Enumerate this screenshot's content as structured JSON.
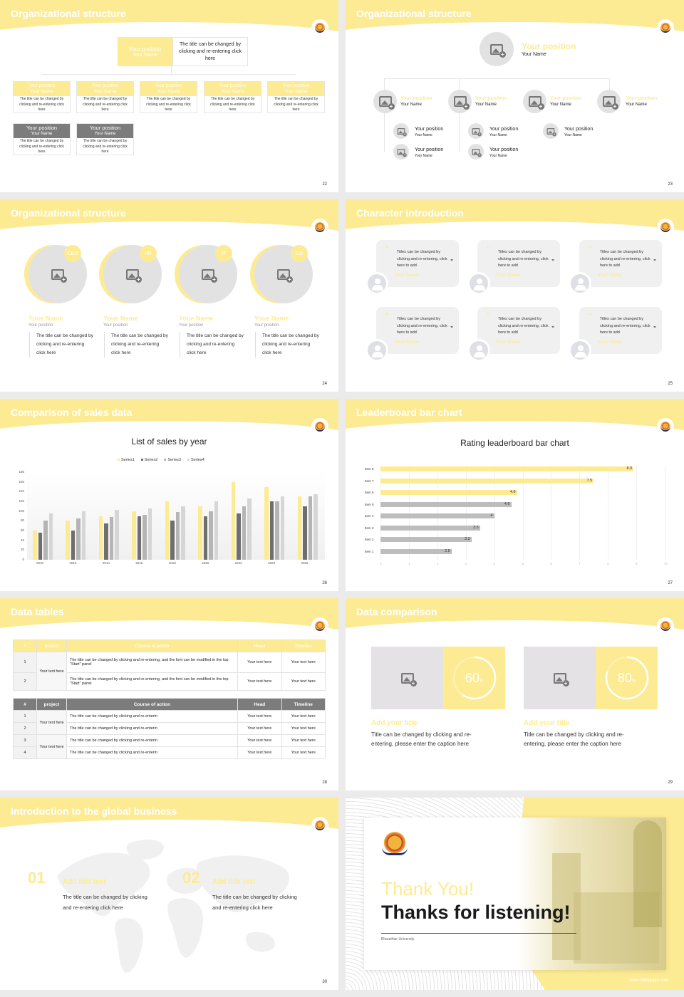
{
  "theme": {
    "accent": "#fdeb93",
    "gray": "#7c7c7c",
    "light_gray": "#e3e2e3",
    "background": "#ebebeb"
  },
  "slides": {
    "s22": {
      "title": "Organizational structure",
      "page": "22",
      "top": {
        "position": "Your position",
        "name": "Your Name",
        "desc": "The title can be changed by clicking and re-entering click here"
      },
      "cards": [
        {
          "position": "Your position",
          "name": "Your Name",
          "desc": "The title can be changed by clicking and re-entering click here"
        },
        {
          "position": "Your position",
          "name": "Your Name",
          "desc": "The title can be changed by clicking and re-entering click here"
        },
        {
          "position": "Your position",
          "name": "Your Name",
          "desc": "The title can be changed by clicking and re-entering click here"
        },
        {
          "position": "Your position",
          "name": "Your Name",
          "desc": "The title can be changed by clicking and re-entering click here"
        },
        {
          "position": "Your position",
          "name": "Your Name",
          "desc": "The title can be changed by clicking and re-entering click here"
        }
      ],
      "sub_cards": [
        {
          "position": "Your position",
          "name": "Your Name",
          "desc": "The title can be changed by clicking and re-entering click here"
        },
        {
          "position": "Your position",
          "name": "Your Name",
          "desc": "The title can be changed by clicking and re-entering click here"
        }
      ]
    },
    "s23": {
      "title": "Organizational structure",
      "page": "23",
      "top": {
        "position": "Your position",
        "name": "Your Name"
      },
      "level2": [
        {
          "position": "Your position",
          "name": "Your Name"
        },
        {
          "position": "Your position",
          "name": "Your Name"
        },
        {
          "position": "Your position",
          "name": "Your Name"
        },
        {
          "position": "Your position",
          "name": "Your Name"
        }
      ],
      "level3": [
        {
          "position": "Your position",
          "name": "Your Name"
        },
        {
          "position": "Your position",
          "name": "Your Name"
        },
        {
          "position": "Your position",
          "name": "Your Name"
        },
        {
          "position": "Your position",
          "name": "Your Name"
        },
        {
          "position": "Your position",
          "name": "Your Name"
        }
      ]
    },
    "s24": {
      "title": "Organizational structure",
      "page": "24",
      "people": [
        {
          "badge": "CEO",
          "name": "Youe Name",
          "position": "Your position",
          "desc": "The title can be changed by clicking and re-entering click here"
        },
        {
          "badge": "PR",
          "name": "Youe Name",
          "position": "Your position",
          "desc": "The title can be changed by clicking and re-entering click here"
        },
        {
          "badge": "IT",
          "name": "Youe Name",
          "position": "Your position",
          "desc": "The title can be changed by clicking and re-entering click here"
        },
        {
          "badge": "GD",
          "name": "Youe Name",
          "position": "Your position",
          "desc": "The title can be changed by clicking and re-entering click here"
        }
      ]
    },
    "s25": {
      "title": "Character introduction",
      "page": "25",
      "cards": [
        {
          "quote": "Titles can be changed by clicking and re-entering, click here to add",
          "name": "Your Name"
        },
        {
          "quote": "Titles can be changed by clicking and re-entering, click here to add",
          "name": "Your Name"
        },
        {
          "quote": "Titles can be changed by clicking and re-entering, click here to add",
          "name": "Your Name"
        },
        {
          "quote": "Titles can be changed by clicking and re-entering, click here to add",
          "name": "Your Name"
        },
        {
          "quote": "Titles can be changed by clicking and re-entering, click here to add",
          "name": "Your Name"
        },
        {
          "quote": "Titles can be changed by clicking and re-entering, click here to add",
          "name": "Your Name"
        }
      ],
      "open_quote": "“",
      "close_quote": "”"
    },
    "s26": {
      "title": "Comparison of sales data",
      "page": "26"
    },
    "s27": {
      "title": "Leaderboard bar chart",
      "page": "27"
    },
    "s28": {
      "title": "Data tables",
      "page": "28",
      "headers": [
        "#",
        "project",
        "Course of action",
        "Head",
        "Timeline"
      ],
      "table1": [
        {
          "num": "1",
          "project": "Your text here",
          "course": "The title can be changed by clicking and re-entering, and the font can be modified in the top \"Start\" panel",
          "head": "Your text here",
          "timeline": "Your text here"
        },
        {
          "num": "2",
          "project": "",
          "course": "The title can be changed by clicking and re-entering, and the font can be modified in the top \"Start\" panel",
          "head": "Your text here",
          "timeline": "Your text here"
        }
      ],
      "table2": [
        {
          "num": "1",
          "project": "Your text here",
          "course": "The title can be changed by clicking and re-enterin",
          "head": "Your text here",
          "timeline": "Your text here"
        },
        {
          "num": "2",
          "project": "",
          "course": "The title can be changed by clicking and re-enterin",
          "head": "Your text here",
          "timeline": "Your text here"
        },
        {
          "num": "3",
          "project": "Your text here",
          "course": "The title can be changed by clicking and re-enterin",
          "head": "Your text here",
          "timeline": "Your text here"
        },
        {
          "num": "4",
          "project": "",
          "course": "The title can be changed by clicking and re-enterin",
          "head": "Your text here",
          "timeline": "Your text here"
        }
      ]
    },
    "s29": {
      "title": "Data comparison",
      "page": "29",
      "items": [
        {
          "percent": "60",
          "unit": "%",
          "title": "Add your title",
          "text": "Title can be changed by clicking and re-entering, please enter the caption here"
        },
        {
          "percent": "80",
          "unit": "%",
          "title": "Add your title",
          "text": "Title can be changed by clicking and re-entering, please enter the caption here"
        }
      ]
    },
    "s30": {
      "title": "Introduction to the global business",
      "page": "30",
      "items": [
        {
          "num": "01",
          "title": "Add title text",
          "text": "The title can be changed by clicking and re-entering click here"
        },
        {
          "num": "02",
          "title": "Add title text",
          "text": "The title can be changed by clicking and re-entering click here"
        }
      ]
    },
    "s31": {
      "line1": "Thank You!",
      "line2": "Thanks for listening!",
      "university": "Bharathiar University",
      "website": "www.collegeppt.com"
    }
  },
  "chart_data": [
    {
      "type": "bar",
      "title": "List of sales by year",
      "categories": [
        "2010",
        "2012",
        "2014",
        "2016",
        "2018",
        "2020",
        "2022",
        "2024",
        "2026"
      ],
      "series": [
        {
          "name": "Series1",
          "color": "#fdeb93",
          "values": [
            60,
            80,
            90,
            100,
            120,
            110,
            160,
            150,
            130
          ]
        },
        {
          "name": "Series2",
          "color": "#6f6f6f",
          "values": [
            55,
            60,
            75,
            90,
            80,
            90,
            95,
            120,
            110
          ]
        },
        {
          "name": "Series3",
          "color": "#b5b5b5",
          "values": [
            80,
            85,
            88,
            92,
            98,
            100,
            110,
            120,
            130
          ]
        },
        {
          "name": "Series4",
          "color": "#d6d6d6",
          "values": [
            95,
            99,
            102,
            105,
            110,
            120,
            126,
            130,
            135
          ]
        }
      ],
      "yticks": [
        "0",
        "20",
        "40",
        "60",
        "80",
        "100",
        "120",
        "140",
        "160",
        "180"
      ],
      "ylim": [
        0,
        180
      ],
      "legend_position": "top",
      "grid": false,
      "xlabel": "",
      "ylabel": ""
    },
    {
      "type": "bar",
      "orientation": "horizontal",
      "title": "Rating leaderboard bar chart",
      "categories": [
        "Item 8",
        "Item 7",
        "Item 6",
        "Item 5",
        "Item 4",
        "Item 3",
        "Item 2",
        "Item 1"
      ],
      "values": [
        8.9,
        7.5,
        4.8,
        4.6,
        4,
        3.5,
        3.2,
        2.5
      ],
      "labels": [
        "8.9",
        "7.5",
        "4.8",
        "4.6",
        "4",
        "3.5",
        "3.2",
        "2.5"
      ],
      "colors": [
        "#fdeb93",
        "#fdeb93",
        "#fdeb93",
        "#bdbdbd",
        "#bdbdbd",
        "#bdbdbd",
        "#bdbdbd",
        "#bdbdbd"
      ],
      "xticks": [
        "0",
        "1",
        "2",
        "3",
        "4",
        "5",
        "6",
        "7",
        "8",
        "9",
        "10"
      ],
      "xlim": [
        0,
        10
      ],
      "grid": true,
      "xlabel": "",
      "ylabel": ""
    }
  ]
}
